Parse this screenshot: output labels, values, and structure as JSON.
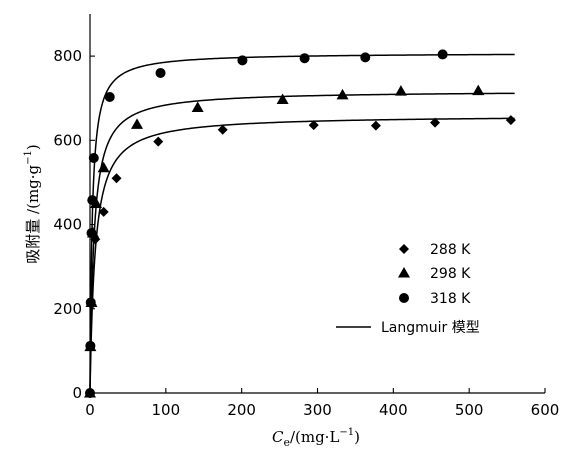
{
  "chart_data": {
    "type": "scatter",
    "title": "",
    "xlabel_prefix": "C",
    "xlabel_sub": "e",
    "xlabel_units_prefix": "/(mg·L",
    "xlabel_units_sup": "−1",
    "xlabel_units_suffix": ")",
    "ylabel_prefix": "吸附量 /(mg·g",
    "ylabel_sup": "−1",
    "ylabel_suffix": ")",
    "xlim": [
      0,
      600
    ],
    "ylim": [
      0,
      900
    ],
    "xticks": [
      0,
      100,
      200,
      300,
      400,
      500,
      600
    ],
    "yticks": [
      0,
      200,
      400,
      600,
      800
    ],
    "grid": false,
    "legend_position": "right-middle",
    "series": [
      {
        "name": "288 K",
        "marker": "diamond",
        "points": [
          [
            0,
            0
          ],
          [
            0.5,
            110
          ],
          [
            2,
            210
          ],
          [
            7,
            365
          ],
          [
            18,
            430
          ],
          [
            35,
            510
          ],
          [
            90,
            597
          ],
          [
            175,
            625
          ],
          [
            295,
            636
          ],
          [
            377,
            635
          ],
          [
            455,
            642
          ],
          [
            555,
            648
          ]
        ]
      },
      {
        "name": "298 K",
        "marker": "triangle",
        "points": [
          [
            0,
            0
          ],
          [
            0.5,
            110
          ],
          [
            2,
            215
          ],
          [
            4,
            380
          ],
          [
            8,
            450
          ],
          [
            18,
            535
          ],
          [
            62,
            638
          ],
          [
            142,
            678
          ],
          [
            254,
            697
          ],
          [
            333,
            708
          ],
          [
            410,
            717
          ],
          [
            512,
            718
          ]
        ]
      },
      {
        "name": "318 K",
        "marker": "circle",
        "points": [
          [
            0,
            0
          ],
          [
            0.5,
            112
          ],
          [
            1,
            215
          ],
          [
            2,
            380
          ],
          [
            3,
            458
          ],
          [
            5,
            558
          ],
          [
            26,
            703
          ],
          [
            93,
            760
          ],
          [
            201,
            790
          ],
          [
            283,
            795
          ],
          [
            363,
            797
          ],
          [
            465,
            804
          ]
        ]
      }
    ],
    "model": {
      "name": "Langmuir 模型",
      "curves": [
        {
          "series": "288 K",
          "qmax": 660,
          "KL": 0.15
        },
        {
          "series": "298 K",
          "qmax": 718,
          "KL": 0.2
        },
        {
          "series": "318 K",
          "qmax": 808,
          "KL": 0.35
        }
      ]
    }
  }
}
